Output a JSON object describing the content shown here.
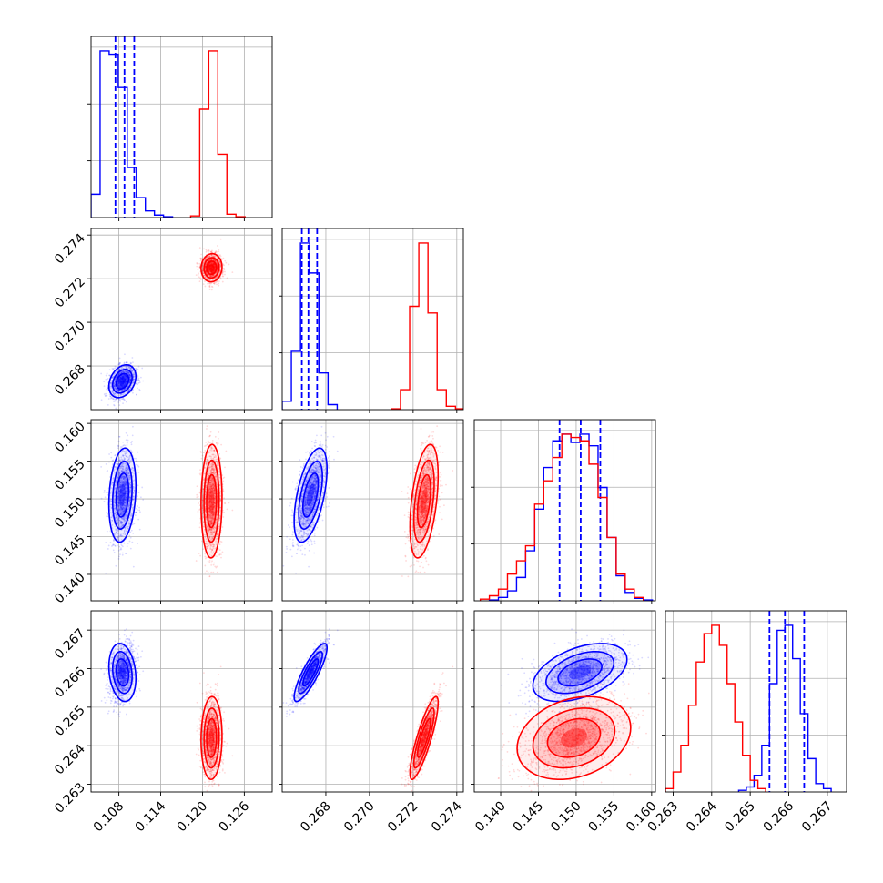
{
  "chart_data": {
    "type": "corner",
    "grid": true,
    "colors": {
      "blue": "#0000ff",
      "red": "#ff0000"
    },
    "parameters": [
      {
        "range": [
          0.104,
          0.13
        ],
        "ticks": [
          0.108,
          0.114,
          0.12,
          0.126
        ],
        "tick_labels": [
          "0.108",
          "0.114",
          "0.120",
          "0.126"
        ]
      },
      {
        "range": [
          0.266,
          0.2743
        ],
        "ticks": [
          0.268,
          0.27,
          0.272,
          0.274
        ],
        "tick_labels": [
          "0.268",
          "0.270",
          "0.272",
          "0.274"
        ]
      },
      {
        "range": [
          0.1365,
          0.1605
        ],
        "ticks": [
          0.14,
          0.145,
          0.15,
          0.155,
          0.16
        ],
        "tick_labels": [
          "0.140",
          "0.145",
          "0.150",
          "0.155",
          "0.160"
        ]
      },
      {
        "range": [
          0.2628,
          0.2675
        ],
        "ticks": [
          0.263,
          0.264,
          0.265,
          0.266,
          0.267
        ],
        "tick_labels": [
          "0.263",
          "0.264",
          "0.265",
          "0.266",
          "0.267"
        ]
      }
    ],
    "series": [
      {
        "color": "blue",
        "mean": [
          0.1085,
          0.2673,
          0.1505,
          0.2659
        ],
        "std": [
          0.0009,
          0.00035,
          0.0029,
          0.00035
        ],
        "quantiles": [
          [
            0.1075,
            0.1088,
            0.1102
          ],
          [
            0.2669,
            0.2672,
            0.2676
          ],
          [
            0.1478,
            0.1506,
            0.1532
          ],
          [
            0.2655,
            0.2659,
            0.2664
          ]
        ],
        "corr": [
          [
            1.0,
            0.3,
            0.2,
            -0.2
          ],
          [
            0.3,
            1.0,
            0.55,
            0.85
          ],
          [
            0.2,
            0.55,
            1.0,
            0.45
          ],
          [
            -0.2,
            0.85,
            0.45,
            1.0
          ]
        ],
        "hist": [
          [
            [
              0.104,
              0.1053,
              0.14
            ],
            [
              0.1053,
              0.1066,
              1.0
            ],
            [
              0.1066,
              0.1079,
              0.98
            ],
            [
              0.1079,
              0.1092,
              0.78
            ],
            [
              0.1092,
              0.1105,
              0.3
            ],
            [
              0.1105,
              0.1118,
              0.12
            ],
            [
              0.1118,
              0.1131,
              0.04
            ],
            [
              0.1131,
              0.1144,
              0.015
            ],
            [
              0.1144,
              0.1157,
              0.005
            ]
          ],
          [
            [
              0.266,
              0.26642,
              0.05
            ],
            [
              0.26642,
              0.26684,
              0.35
            ],
            [
              0.26684,
              0.26726,
              1.0
            ],
            [
              0.26726,
              0.26768,
              0.82
            ],
            [
              0.26768,
              0.2681,
              0.22
            ],
            [
              0.2681,
              0.26852,
              0.03
            ]
          ],
          [
            [
              0.1385,
              0.1397,
              0.005
            ],
            [
              0.1397,
              0.1409,
              0.02
            ],
            [
              0.1409,
              0.1421,
              0.06
            ],
            [
              0.1421,
              0.1433,
              0.14
            ],
            [
              0.1433,
              0.1445,
              0.3
            ],
            [
              0.1445,
              0.1457,
              0.55
            ],
            [
              0.1457,
              0.1469,
              0.8
            ],
            [
              0.1469,
              0.1481,
              0.96
            ],
            [
              0.1481,
              0.1493,
              1.0
            ],
            [
              0.1493,
              0.1505,
              0.95
            ],
            [
              0.1505,
              0.1517,
              1.0
            ],
            [
              0.1517,
              0.1529,
              0.93
            ],
            [
              0.1529,
              0.1541,
              0.68
            ],
            [
              0.1541,
              0.1553,
              0.38
            ],
            [
              0.1553,
              0.1565,
              0.15
            ],
            [
              0.1565,
              0.1577,
              0.05
            ],
            [
              0.1577,
              0.1589,
              0.015
            ],
            [
              0.1589,
              0.1601,
              0.005
            ]
          ],
          [
            [
              0.2647,
              0.2649,
              0.01
            ],
            [
              0.2649,
              0.2651,
              0.03
            ],
            [
              0.2651,
              0.2653,
              0.1
            ],
            [
              0.2653,
              0.2655,
              0.28
            ],
            [
              0.2655,
              0.2657,
              0.65
            ],
            [
              0.2657,
              0.2659,
              0.97
            ],
            [
              0.2659,
              0.2661,
              1.0
            ],
            [
              0.2661,
              0.2663,
              0.8
            ],
            [
              0.2663,
              0.2665,
              0.47
            ],
            [
              0.2665,
              0.2667,
              0.2
            ],
            [
              0.2667,
              0.2669,
              0.05
            ],
            [
              0.2669,
              0.2671,
              0.02
            ]
          ]
        ]
      },
      {
        "color": "red",
        "mean": [
          0.1213,
          0.2725,
          0.1497,
          0.2642
        ],
        "std": [
          0.0007,
          0.0003,
          0.0035,
          0.0005
        ],
        "corr": [
          [
            1.0,
            0.05,
            0.05,
            0.05
          ],
          [
            0.05,
            1.0,
            0.45,
            0.85
          ],
          [
            0.05,
            0.45,
            1.0,
            0.25
          ],
          [
            0.05,
            0.85,
            0.25,
            1.0
          ]
        ],
        "hist": [
          [
            [
              0.1183,
              0.1196,
              0.01
            ],
            [
              0.1196,
              0.1209,
              0.65
            ],
            [
              0.1209,
              0.1222,
              1.0
            ],
            [
              0.1222,
              0.1235,
              0.38
            ],
            [
              0.1235,
              0.1248,
              0.02
            ],
            [
              0.1248,
              0.1261,
              0.005
            ]
          ],
          [
            [
              0.271,
              0.27142,
              0.005
            ],
            [
              0.27142,
              0.27184,
              0.12
            ],
            [
              0.27184,
              0.27226,
              0.62
            ],
            [
              0.27226,
              0.27268,
              1.0
            ],
            [
              0.27268,
              0.2731,
              0.58
            ],
            [
              0.2731,
              0.27352,
              0.12
            ],
            [
              0.27352,
              0.27394,
              0.02
            ],
            [
              0.27394,
              0.27436,
              0.005
            ]
          ],
          [
            [
              0.1373,
              0.1385,
              0.01
            ],
            [
              0.1385,
              0.1397,
              0.03
            ],
            [
              0.1397,
              0.1409,
              0.07
            ],
            [
              0.1409,
              0.1421,
              0.16
            ],
            [
              0.1421,
              0.1433,
              0.24
            ],
            [
              0.1433,
              0.1445,
              0.33
            ],
            [
              0.1445,
              0.1457,
              0.58
            ],
            [
              0.1457,
              0.1469,
              0.72
            ],
            [
              0.1469,
              0.1481,
              0.86
            ],
            [
              0.1481,
              0.1493,
              1.0
            ],
            [
              0.1493,
              0.1505,
              0.98
            ],
            [
              0.1505,
              0.1517,
              0.96
            ],
            [
              0.1517,
              0.1529,
              0.82
            ],
            [
              0.1529,
              0.1541,
              0.62
            ],
            [
              0.1541,
              0.1553,
              0.38
            ],
            [
              0.1553,
              0.1565,
              0.16
            ],
            [
              0.1565,
              0.1577,
              0.07
            ],
            [
              0.1577,
              0.1589,
              0.02
            ]
          ],
          [
            [
              0.2628,
              0.263,
              0.02
            ],
            [
              0.263,
              0.2632,
              0.12
            ],
            [
              0.2632,
              0.2634,
              0.28
            ],
            [
              0.2634,
              0.2636,
              0.52
            ],
            [
              0.2636,
              0.2638,
              0.78
            ],
            [
              0.2638,
              0.264,
              0.95
            ],
            [
              0.264,
              0.2642,
              1.0
            ],
            [
              0.2642,
              0.2644,
              0.88
            ],
            [
              0.2644,
              0.2646,
              0.65
            ],
            [
              0.2646,
              0.2648,
              0.42
            ],
            [
              0.2648,
              0.265,
              0.22
            ],
            [
              0.265,
              0.2652,
              0.07
            ],
            [
              0.2652,
              0.2654,
              0.02
            ]
          ]
        ]
      }
    ]
  }
}
